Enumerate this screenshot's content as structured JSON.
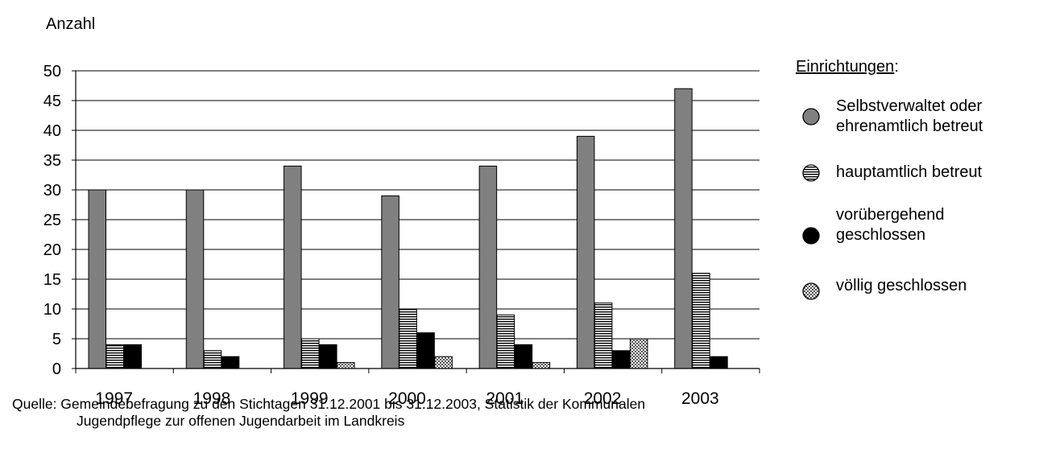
{
  "chart_data": {
    "type": "bar",
    "ylabel": "Anzahl",
    "ylim": [
      0,
      50
    ],
    "yticks": [
      "0",
      "5",
      "10",
      "15",
      "20",
      "25",
      "30",
      "35",
      "40",
      "45",
      "50"
    ],
    "categories": [
      "1997",
      "1998",
      "1999",
      "2000",
      "2001",
      "2002",
      "2003"
    ],
    "grid": true,
    "legend_title": "Einrichtungen",
    "legend_colon": ":",
    "legend_position": "right",
    "series": [
      {
        "name": "Selbstverwaltet oder ehrenamtlich betreut",
        "name_lines": [
          "Selbstverwaltet oder",
          "ehrenamtlich betreut"
        ],
        "pattern": "gray",
        "values": [
          30,
          30,
          34,
          29,
          34,
          39,
          47
        ]
      },
      {
        "name": "hauptamtlich betreut",
        "name_lines": [
          "hauptamtlich betreut"
        ],
        "pattern": "horizontal-lines",
        "values": [
          4,
          3,
          5,
          10,
          9,
          11,
          16
        ]
      },
      {
        "name": "vorübergehend geschlossen",
        "name_lines": [
          "vorübergehend",
          "geschlossen"
        ],
        "pattern": "black",
        "values": [
          4,
          2,
          4,
          6,
          4,
          3,
          2
        ]
      },
      {
        "name": "völlig geschlossen",
        "name_lines": [
          "völlig geschlossen"
        ],
        "pattern": "crosshatch",
        "values": [
          0,
          0,
          1,
          2,
          1,
          5,
          0
        ]
      }
    ]
  },
  "source": {
    "line1": "Quelle: Gemeindebefragung zu den Stichtagen 31.12.2001 bis 31.12.2003, Statistik der Kommunalen",
    "line2": "Jugendpflege zur offenen Jugendarbeit im Landkreis"
  }
}
